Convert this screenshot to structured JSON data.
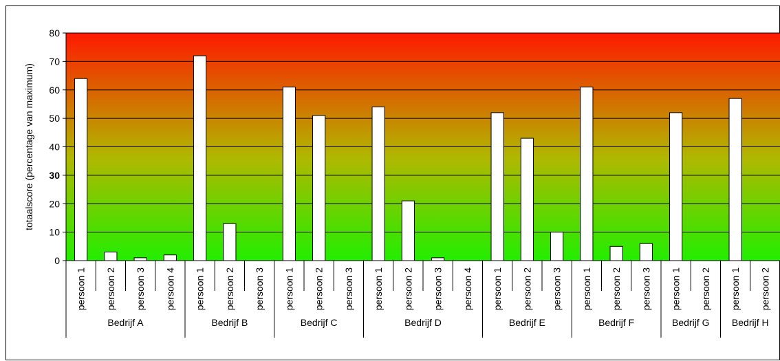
{
  "chart_data": {
    "type": "bar",
    "ylabel": "totaalscore (percentage van maximum)",
    "xlabel": "",
    "title": "",
    "ylim": [
      0,
      80
    ],
    "yticks": [
      0,
      10,
      20,
      30,
      40,
      50,
      60,
      70,
      80
    ],
    "highlight_tick": {
      "value": 30,
      "color": "#e8141a"
    },
    "background_gradient": {
      "top": "#ff1a00",
      "middle": "#b0b800",
      "bottom": "#22ee00"
    },
    "bar_fill": "#ffffff",
    "grid": true,
    "legend": "none",
    "groups": [
      {
        "name": "Bedrijf A",
        "categories": [
          "persoon 1",
          "persoon 2",
          "persoon 3",
          "persoon 4"
        ],
        "values": [
          64,
          3,
          1,
          2
        ]
      },
      {
        "name": "Bedrijf B",
        "categories": [
          "persoon 1",
          "persoon 2",
          "persoon 3"
        ],
        "values": [
          72,
          13,
          0
        ]
      },
      {
        "name": "Bedrijf C",
        "categories": [
          "persoon 1",
          "persoon 2",
          "persoon 3"
        ],
        "values": [
          61,
          51,
          0
        ]
      },
      {
        "name": "Bedrijf D",
        "categories": [
          "persoon 1",
          "persoon 2",
          "persoon 3",
          "persoon 4"
        ],
        "values": [
          54,
          21,
          1,
          0
        ]
      },
      {
        "name": "Bedrijf E",
        "categories": [
          "persoon 1",
          "persoon 2",
          "persoon 3"
        ],
        "values": [
          52,
          43,
          10
        ]
      },
      {
        "name": "Bedrijf F",
        "categories": [
          "persoon 1",
          "persoon 2",
          "persoon 3"
        ],
        "values": [
          61,
          5,
          6
        ]
      },
      {
        "name": "Bedrijf G",
        "categories": [
          "persoon 1",
          "persoon 2"
        ],
        "values": [
          52,
          0
        ]
      },
      {
        "name": "Bedrijf H",
        "categories": [
          "persoon 1",
          "persoon 2"
        ],
        "values": [
          57,
          0
        ]
      }
    ]
  }
}
